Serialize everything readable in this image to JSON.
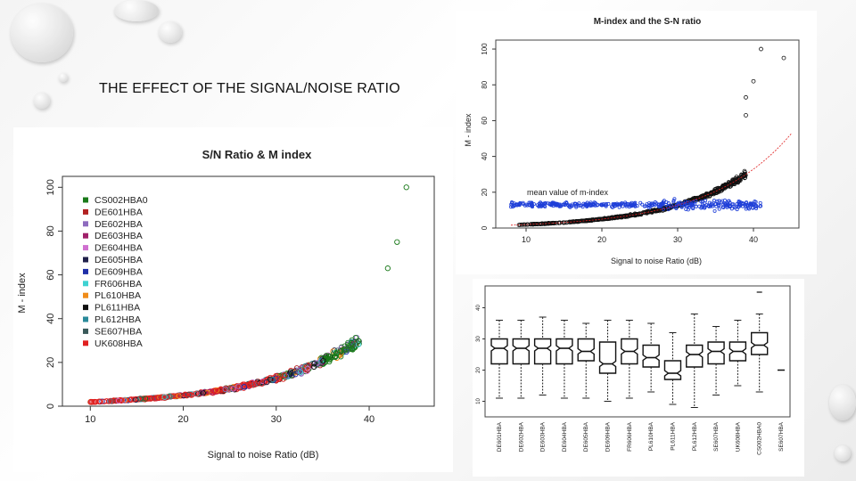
{
  "slide": {
    "title": "THE EFFECT OF THE SIGNAL/NOISE RATIO"
  },
  "chart_data": [
    {
      "type": "scatter",
      "title": "S/N Ratio & M index",
      "xlabel": "Signal to noise Ratio (dB)",
      "ylabel": "M - index",
      "x_ticks": [
        10,
        20,
        30,
        40
      ],
      "y_ticks": [
        0,
        20,
        40,
        60,
        80,
        100
      ],
      "xlim": [
        7,
        47
      ],
      "ylim": [
        0,
        105
      ],
      "legend_position": "top-left",
      "series": [
        {
          "name": "CS002HBA0",
          "color": "#1a7a1a"
        },
        {
          "name": "DE601HBA",
          "color": "#b22222"
        },
        {
          "name": "DE602HBA",
          "color": "#8e6bbf"
        },
        {
          "name": "DE603HBA",
          "color": "#a0206a"
        },
        {
          "name": "DE604HBA",
          "color": "#d070d0"
        },
        {
          "name": "DE605HBA",
          "color": "#20204a"
        },
        {
          "name": "DE609HBA",
          "color": "#1f2fa8"
        },
        {
          "name": "FR606HBA",
          "color": "#3fd2d2"
        },
        {
          "name": "PL610HBA",
          "color": "#f08c1a"
        },
        {
          "name": "PL611HBA",
          "color": "#111111"
        },
        {
          "name": "PL612HBA",
          "color": "#2a8a9a"
        },
        {
          "name": "SE607HBA",
          "color": "#3a5a5a"
        },
        {
          "name": "UK608HBA",
          "color": "#e02020"
        }
      ],
      "outliers": [
        {
          "x": 44,
          "y": 100
        },
        {
          "x": 43,
          "y": 75
        },
        {
          "x": 42,
          "y": 63
        }
      ]
    },
    {
      "type": "scatter",
      "title": "M-index and the S-N ratio",
      "xlabel": "Signal to noise Ratio (dB)",
      "ylabel": "M - index",
      "x_ticks": [
        10,
        20,
        30,
        40
      ],
      "y_ticks": [
        0,
        20,
        40,
        60,
        80,
        100
      ],
      "xlim": [
        6,
        46
      ],
      "ylim": [
        0,
        105
      ],
      "annotation": "mean value of m-index",
      "series": [
        {
          "name": "M-index",
          "color": "#111111"
        },
        {
          "name": "mean value of m-index",
          "color": "#1f3fd8"
        },
        {
          "name": "fit",
          "color": "#e02020"
        }
      ]
    },
    {
      "type": "box",
      "y_ticks": [
        10,
        20,
        30,
        40
      ],
      "ylim": [
        5,
        47
      ],
      "categories": [
        "DE601HBA",
        "DE602HBA",
        "DE603HBA",
        "DE604HBA",
        "DE605HBA",
        "DE609HBA",
        "FR606HBA",
        "PL610HBA",
        "PL611HBA",
        "PL612HBA",
        "SE607HBA",
        "UK608HBA",
        "CS002HBA0",
        "SE607HBA"
      ],
      "boxes": [
        {
          "min": 11,
          "q1": 22,
          "median": 27,
          "q3": 30,
          "max": 36
        },
        {
          "min": 11,
          "q1": 22,
          "median": 27,
          "q3": 30,
          "max": 36
        },
        {
          "min": 12,
          "q1": 22,
          "median": 27,
          "q3": 30,
          "max": 37
        },
        {
          "min": 11,
          "q1": 22,
          "median": 27,
          "q3": 30,
          "max": 36
        },
        {
          "min": 11,
          "q1": 23,
          "median": 26,
          "q3": 30,
          "max": 35
        },
        {
          "min": 10,
          "q1": 19,
          "median": 22,
          "q3": 29,
          "max": 36
        },
        {
          "min": 11,
          "q1": 22,
          "median": 26,
          "q3": 30,
          "max": 36
        },
        {
          "min": 13,
          "q1": 21,
          "median": 24,
          "q3": 28,
          "max": 35
        },
        {
          "min": 9,
          "q1": 17,
          "median": 19,
          "q3": 23,
          "max": 32
        },
        {
          "min": 8,
          "q1": 21,
          "median": 25,
          "q3": 28,
          "max": 38
        },
        {
          "min": 12,
          "q1": 22,
          "median": 26,
          "q3": 29,
          "max": 34
        },
        {
          "min": 15,
          "q1": 23,
          "median": 26,
          "q3": 29,
          "max": 36
        },
        {
          "min": 13,
          "q1": 25,
          "median": 28,
          "q3": 32,
          "max": 38
        },
        {
          "min": 20,
          "q1": 20,
          "median": 20,
          "q3": 20,
          "max": 20
        }
      ],
      "outliers": [
        {
          "box": 12,
          "y": 45
        }
      ]
    }
  ]
}
